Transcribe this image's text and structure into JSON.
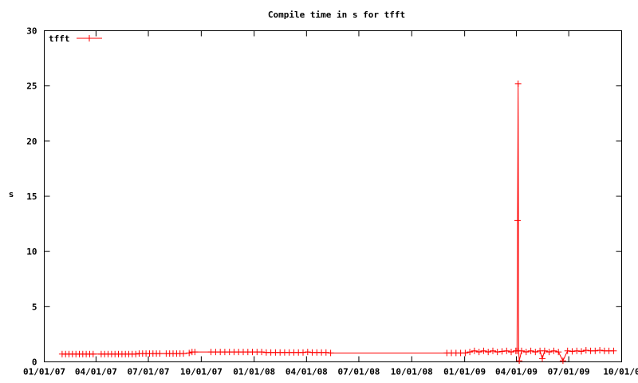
{
  "chart_data": {
    "type": "line",
    "title": "Compile time in s for tfft",
    "xlabel": "",
    "ylabel": "s",
    "ylim": [
      0,
      30
    ],
    "xlim": [
      "2007-01-01",
      "2009-10-01"
    ],
    "yticks": [
      0,
      5,
      10,
      15,
      20,
      25,
      30
    ],
    "xticks": [
      {
        "date": "2007-01-01",
        "label": "01/01/07"
      },
      {
        "date": "2007-04-01",
        "label": "04/01/07"
      },
      {
        "date": "2007-07-01",
        "label": "07/01/07"
      },
      {
        "date": "2007-10-01",
        "label": "10/01/07"
      },
      {
        "date": "2008-01-01",
        "label": "01/01/08"
      },
      {
        "date": "2008-04-01",
        "label": "04/01/08"
      },
      {
        "date": "2008-07-01",
        "label": "07/01/08"
      },
      {
        "date": "2008-10-01",
        "label": "10/01/08"
      },
      {
        "date": "2009-01-01",
        "label": "01/01/09"
      },
      {
        "date": "2009-04-01",
        "label": "04/01/09"
      },
      {
        "date": "2009-07-01",
        "label": "07/01/09"
      },
      {
        "date": "2009-10-01",
        "label": "10/01/0"
      }
    ],
    "legend_position": "top-left",
    "grid": false,
    "series": [
      {
        "name": "tfft",
        "color": "#ff0000",
        "marker": "plus",
        "x": [
          "2007-02-01",
          "2007-02-07",
          "2007-02-13",
          "2007-02-19",
          "2007-02-25",
          "2007-03-03",
          "2007-03-09",
          "2007-03-15",
          "2007-03-21",
          "2007-03-27",
          "2007-04-10",
          "2007-04-16",
          "2007-04-22",
          "2007-04-28",
          "2007-05-04",
          "2007-05-10",
          "2007-05-16",
          "2007-05-22",
          "2007-05-28",
          "2007-06-03",
          "2007-06-09",
          "2007-06-15",
          "2007-06-21",
          "2007-06-27",
          "2007-07-03",
          "2007-07-09",
          "2007-07-15",
          "2007-07-21",
          "2007-08-01",
          "2007-08-07",
          "2007-08-13",
          "2007-08-19",
          "2007-08-25",
          "2007-08-31",
          "2007-09-10",
          "2007-09-15",
          "2007-09-20",
          "2007-10-18",
          "2007-10-26",
          "2007-11-03",
          "2007-11-11",
          "2007-11-19",
          "2007-11-27",
          "2007-12-05",
          "2007-12-13",
          "2007-12-21",
          "2007-12-29",
          "2008-01-06",
          "2008-01-14",
          "2008-01-22",
          "2008-01-30",
          "2008-02-07",
          "2008-02-15",
          "2008-02-23",
          "2008-03-02",
          "2008-03-10",
          "2008-03-18",
          "2008-03-26",
          "2008-04-03",
          "2008-04-11",
          "2008-04-19",
          "2008-04-27",
          "2008-05-05",
          "2008-05-13",
          "2008-12-01",
          "2008-12-09",
          "2008-12-17",
          "2008-12-25",
          "2009-01-02",
          "2009-01-10",
          "2009-01-18",
          "2009-01-26",
          "2009-02-03",
          "2009-02-11",
          "2009-02-19",
          "2009-02-27",
          "2009-03-07",
          "2009-03-15",
          "2009-03-23",
          "2009-03-31",
          "2009-04-02",
          "2009-04-03",
          "2009-04-04",
          "2009-04-05",
          "2009-04-06",
          "2009-04-10",
          "2009-04-18",
          "2009-04-26",
          "2009-05-04",
          "2009-05-12",
          "2009-05-16",
          "2009-05-20",
          "2009-05-28",
          "2009-06-05",
          "2009-06-13",
          "2009-06-21",
          "2009-06-29",
          "2009-07-07",
          "2009-07-15",
          "2009-07-23",
          "2009-07-31",
          "2009-08-08",
          "2009-08-16",
          "2009-08-24",
          "2009-09-01",
          "2009-09-09",
          "2009-09-17"
        ],
        "y": [
          0.7,
          0.7,
          0.7,
          0.7,
          0.7,
          0.7,
          0.7,
          0.7,
          0.7,
          0.7,
          0.7,
          0.7,
          0.7,
          0.7,
          0.7,
          0.7,
          0.7,
          0.7,
          0.7,
          0.7,
          0.7,
          0.75,
          0.75,
          0.75,
          0.75,
          0.75,
          0.75,
          0.75,
          0.75,
          0.75,
          0.75,
          0.75,
          0.75,
          0.75,
          0.8,
          0.9,
          0.9,
          0.9,
          0.9,
          0.9,
          0.9,
          0.9,
          0.9,
          0.9,
          0.9,
          0.9,
          0.9,
          0.9,
          0.9,
          0.85,
          0.85,
          0.85,
          0.85,
          0.85,
          0.85,
          0.85,
          0.85,
          0.85,
          0.9,
          0.85,
          0.85,
          0.85,
          0.85,
          0.8,
          0.8,
          0.8,
          0.8,
          0.8,
          0.8,
          0.9,
          1.0,
          0.9,
          1.0,
          0.9,
          1.0,
          0.9,
          0.95,
          1.0,
          0.9,
          1.0,
          1.0,
          12.8,
          25.2,
          1.0,
          0.1,
          1.0,
          0.9,
          1.0,
          0.9,
          1.0,
          0.3,
          1.0,
          0.9,
          1.0,
          0.9,
          0.1,
          1.0,
          0.95,
          1.0,
          0.95,
          1.05,
          1.0,
          1.0,
          1.05,
          1.0,
          1.0,
          1.0
        ]
      }
    ]
  }
}
